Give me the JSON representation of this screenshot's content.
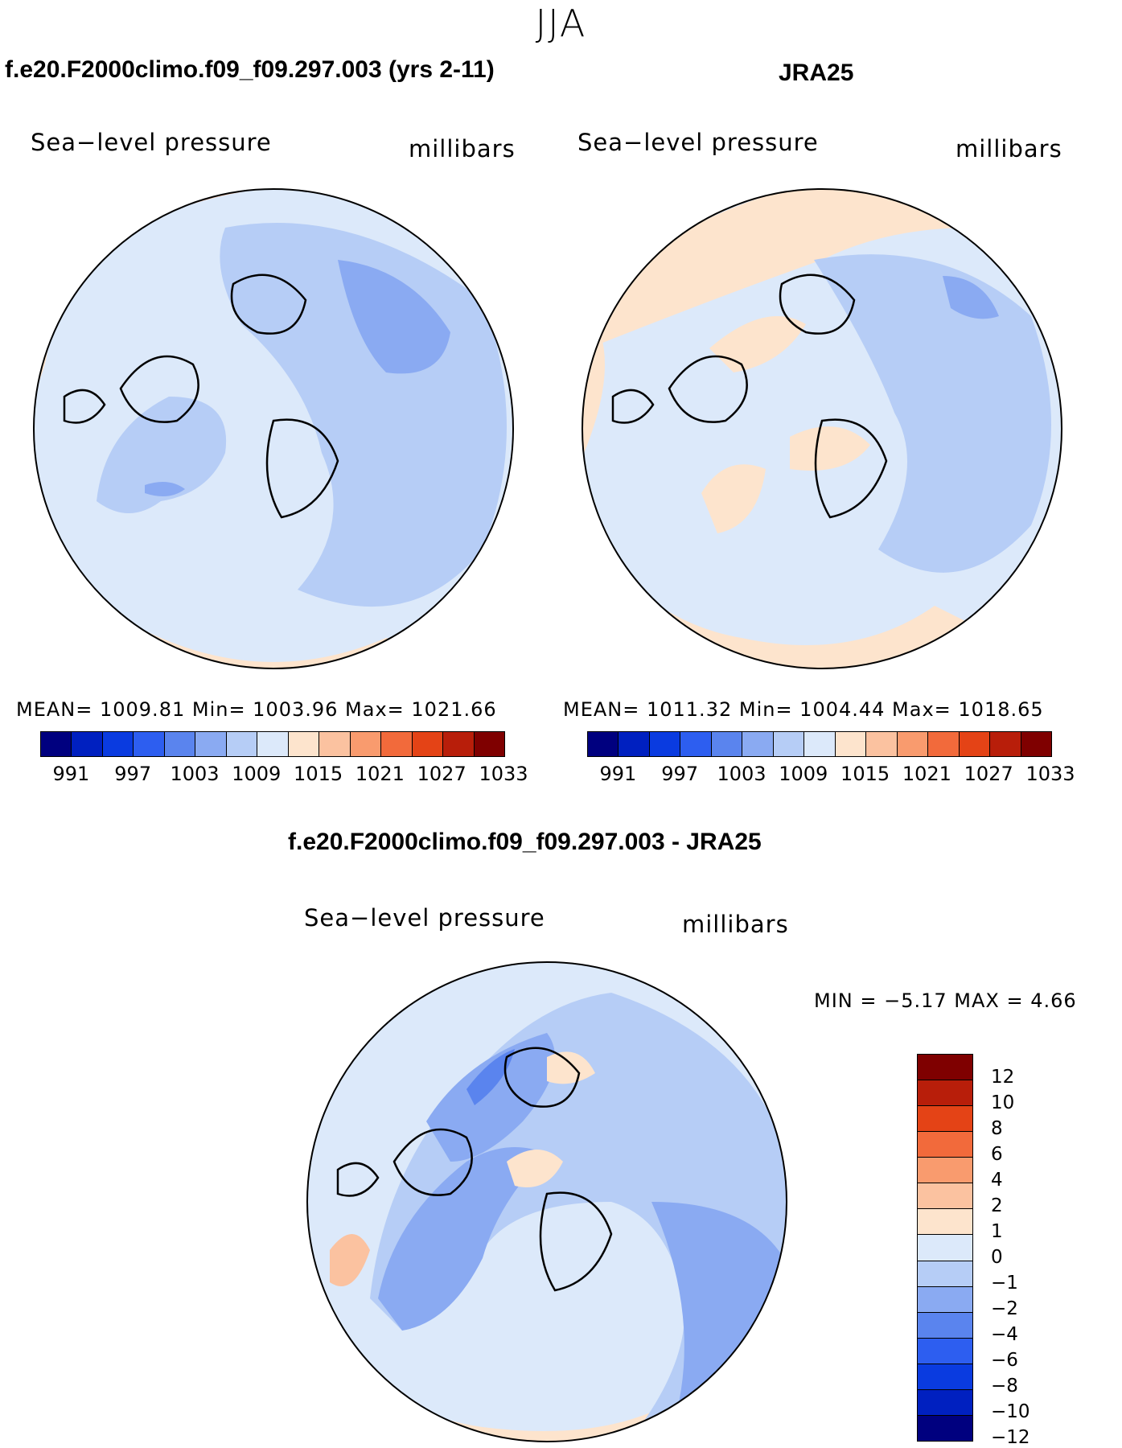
{
  "figure": {
    "title": "JJA",
    "left_title": "f.e20.F2000climo.f09_f09.297.003 (yrs 2-11)",
    "right_title": "JRA25",
    "diff_title": "f.e20.F2000climo.f09_f09.297.003 - JRA25"
  },
  "panels": {
    "model": {
      "variable": "Sea−level pressure",
      "units": "millibars",
      "stats": "MEAN=  1009.81   Min=  1003.96   Max=  1021.66"
    },
    "obs": {
      "variable": "Sea−level pressure",
      "units": "millibars",
      "stats": "MEAN=  1011.32   Min=  1004.44   Max=  1018.65"
    },
    "diff": {
      "variable": "Sea−level pressure",
      "units": "millibars",
      "stats": "MIN =   −5.17  MAX =     4.66"
    }
  },
  "colorbar_abs": {
    "colors": [
      "#00007f",
      "#0020c0",
      "#0a3be0",
      "#2d5ef0",
      "#5a84ee",
      "#8aaaf2",
      "#b6cdf6",
      "#dce9fa",
      "#fde4cd",
      "#fbc2a0",
      "#f99b6e",
      "#f26a3b",
      "#e44316",
      "#b81e0a",
      "#7f0000"
    ],
    "labels": [
      "991",
      "997",
      "1003",
      "1009",
      "1015",
      "1021",
      "1027",
      "1033"
    ]
  },
  "colorbar_diff": {
    "colors": [
      "#7f0000",
      "#b81e0a",
      "#e44316",
      "#f26a3b",
      "#f99b6e",
      "#fbc2a0",
      "#fde4cd",
      "#dce9fa",
      "#b6cdf6",
      "#8aaaf2",
      "#5a84ee",
      "#2d5ef0",
      "#0a3be0",
      "#0020c0",
      "#00007f"
    ],
    "labels": [
      "12",
      "10",
      "8",
      "6",
      "4",
      "2",
      "1",
      "0",
      "−1",
      "−2",
      "−4",
      "−6",
      "−8",
      "−10",
      "−12"
    ]
  },
  "map_palette": {
    "red_strong": "#f26a3b",
    "red_mid": "#f99b6e",
    "red_light": "#fbc2a0",
    "cream": "#fde4cd",
    "ice": "#dce9fa",
    "light_blue": "#b6cdf6",
    "mid_blue": "#8aaaf2",
    "blue": "#5a84ee"
  }
}
